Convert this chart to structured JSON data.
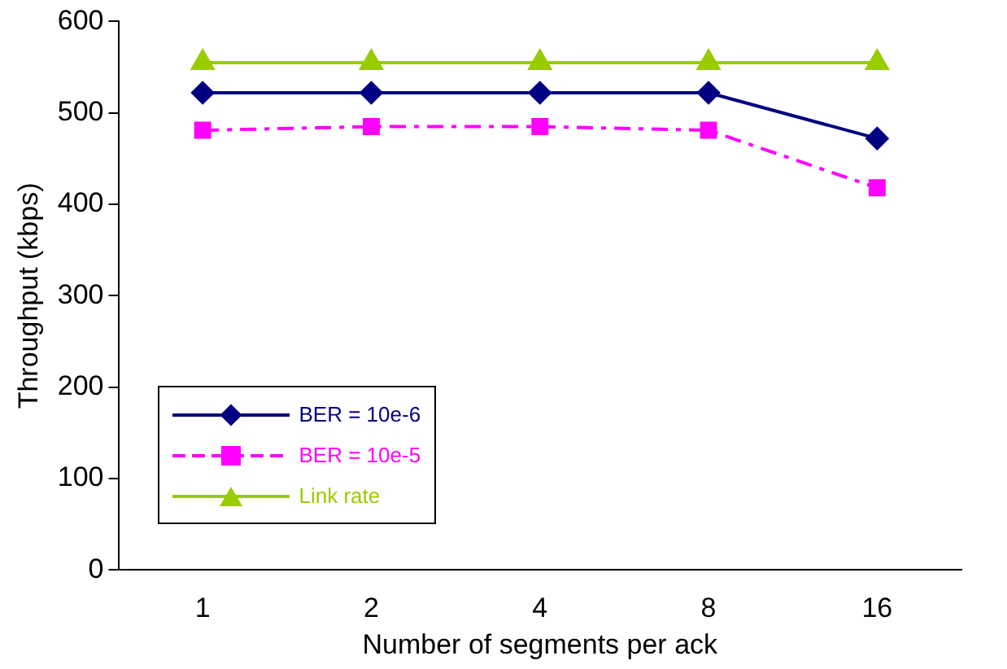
{
  "chart_data": {
    "type": "line",
    "xlabel": "Number of segments per ack",
    "ylabel": "Throughput (kbps)",
    "categories": [
      "1",
      "2",
      "4",
      "8",
      "16"
    ],
    "ylim": [
      0,
      600
    ],
    "yticks": [
      0,
      100,
      200,
      300,
      400,
      500,
      600
    ],
    "grid": false,
    "legend": "bottom left",
    "series": [
      {
        "name": "BER = 10e-6",
        "color": "#000080",
        "marker": "diamond",
        "line_style": "solid",
        "values": [
          522,
          522,
          522,
          522,
          472
        ]
      },
      {
        "name": "BER = 10e-5",
        "color": "#ff00ff",
        "marker": "square",
        "line_style": "dashed",
        "values": [
          481,
          485,
          485,
          481,
          418
        ]
      },
      {
        "name": "Link rate",
        "color": "#99cc00",
        "marker": "triangle",
        "line_style": "solid",
        "values": [
          555,
          555,
          555,
          555,
          555
        ]
      }
    ]
  }
}
